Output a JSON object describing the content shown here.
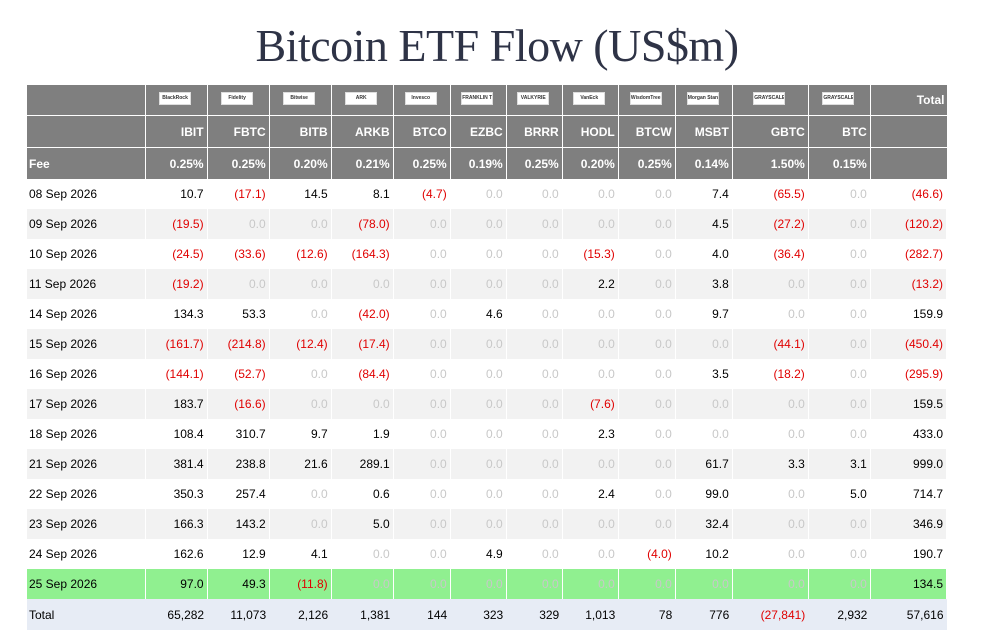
{
  "title": "Bitcoin ETF Flow (US$m)",
  "header": {
    "total_label": "Total",
    "fee_label": "Fee",
    "funds": [
      {
        "logo": "BlackRock",
        "ticker": "IBIT",
        "fee": "0.25%"
      },
      {
        "logo": "Fidelity",
        "ticker": "FBTC",
        "fee": "0.25%"
      },
      {
        "logo": "Bitwise",
        "ticker": "BITB",
        "fee": "0.20%"
      },
      {
        "logo": "ARK",
        "ticker": "ARKB",
        "fee": "0.21%"
      },
      {
        "logo": "Invesco",
        "ticker": "BTCO",
        "fee": "0.25%"
      },
      {
        "logo": "FRANKLIN TEMPLETON",
        "ticker": "EZBC",
        "fee": "0.19%"
      },
      {
        "logo": "VALKYRIE",
        "ticker": "BRRR",
        "fee": "0.25%"
      },
      {
        "logo": "VanEck",
        "ticker": "HODL",
        "fee": "0.20%"
      },
      {
        "logo": "WisdomTree",
        "ticker": "BTCW",
        "fee": "0.25%"
      },
      {
        "logo": "Morgan Stanley",
        "ticker": "MSBT",
        "fee": "0.14%"
      },
      {
        "logo": "GRAYSCALE",
        "ticker": "GBTC",
        "fee": "1.50%"
      },
      {
        "logo": "GRAYSCALE",
        "ticker": "BTC",
        "fee": "0.15%"
      }
    ]
  },
  "rows": [
    {
      "date": "08 Sep 2026",
      "values": [
        "10.7",
        "(17.1)",
        "14.5",
        "8.1",
        "(4.7)",
        "0.0",
        "0.0",
        "0.0",
        "0.0",
        "7.4",
        "(65.5)",
        "0.0",
        "(46.6)"
      ]
    },
    {
      "date": "09 Sep 2026",
      "values": [
        "(19.5)",
        "0.0",
        "0.0",
        "(78.0)",
        "0.0",
        "0.0",
        "0.0",
        "0.0",
        "0.0",
        "4.5",
        "(27.2)",
        "0.0",
        "(120.2)"
      ]
    },
    {
      "date": "10 Sep 2026",
      "values": [
        "(24.5)",
        "(33.6)",
        "(12.6)",
        "(164.3)",
        "0.0",
        "0.0",
        "0.0",
        "(15.3)",
        "0.0",
        "4.0",
        "(36.4)",
        "0.0",
        "(282.7)"
      ]
    },
    {
      "date": "11 Sep 2026",
      "values": [
        "(19.2)",
        "0.0",
        "0.0",
        "0.0",
        "0.0",
        "0.0",
        "0.0",
        "2.2",
        "0.0",
        "3.8",
        "0.0",
        "0.0",
        "(13.2)"
      ]
    },
    {
      "date": "14 Sep 2026",
      "values": [
        "134.3",
        "53.3",
        "0.0",
        "(42.0)",
        "0.0",
        "4.6",
        "0.0",
        "0.0",
        "0.0",
        "9.7",
        "0.0",
        "0.0",
        "159.9"
      ]
    },
    {
      "date": "15 Sep 2026",
      "values": [
        "(161.7)",
        "(214.8)",
        "(12.4)",
        "(17.4)",
        "0.0",
        "0.0",
        "0.0",
        "0.0",
        "0.0",
        "0.0",
        "(44.1)",
        "0.0",
        "(450.4)"
      ]
    },
    {
      "date": "16 Sep 2026",
      "values": [
        "(144.1)",
        "(52.7)",
        "0.0",
        "(84.4)",
        "0.0",
        "0.0",
        "0.0",
        "0.0",
        "0.0",
        "3.5",
        "(18.2)",
        "0.0",
        "(295.9)"
      ]
    },
    {
      "date": "17 Sep 2026",
      "values": [
        "183.7",
        "(16.6)",
        "0.0",
        "0.0",
        "0.0",
        "0.0",
        "0.0",
        "(7.6)",
        "0.0",
        "0.0",
        "0.0",
        "0.0",
        "159.5"
      ]
    },
    {
      "date": "18 Sep 2026",
      "values": [
        "108.4",
        "310.7",
        "9.7",
        "1.9",
        "0.0",
        "0.0",
        "0.0",
        "2.3",
        "0.0",
        "0.0",
        "0.0",
        "0.0",
        "433.0"
      ]
    },
    {
      "date": "21 Sep 2026",
      "values": [
        "381.4",
        "238.8",
        "21.6",
        "289.1",
        "0.0",
        "0.0",
        "0.0",
        "0.0",
        "0.0",
        "61.7",
        "3.3",
        "3.1",
        "999.0"
      ]
    },
    {
      "date": "22 Sep 2026",
      "values": [
        "350.3",
        "257.4",
        "0.0",
        "0.6",
        "0.0",
        "0.0",
        "0.0",
        "2.4",
        "0.0",
        "99.0",
        "0.0",
        "5.0",
        "714.7"
      ]
    },
    {
      "date": "23 Sep 2026",
      "values": [
        "166.3",
        "143.2",
        "0.0",
        "5.0",
        "0.0",
        "0.0",
        "0.0",
        "0.0",
        "0.0",
        "32.4",
        "0.0",
        "0.0",
        "346.9"
      ]
    },
    {
      "date": "24 Sep 2026",
      "values": [
        "162.6",
        "12.9",
        "4.1",
        "0.0",
        "0.0",
        "4.9",
        "0.0",
        "0.0",
        "(4.0)",
        "10.2",
        "0.0",
        "0.0",
        "190.7"
      ]
    },
    {
      "date": "25 Sep 2026",
      "values": [
        "97.0",
        "49.3",
        "(11.8)",
        "0.0",
        "0.0",
        "0.0",
        "0.0",
        "0.0",
        "0.0",
        "0.0",
        "0.0",
        "0.0",
        "134.5"
      ],
      "highlight": true
    }
  ],
  "total": {
    "label": "Total",
    "values": [
      "65,282",
      "11,073",
      "2,126",
      "1,381",
      "144",
      "323",
      "329",
      "1,013",
      "78",
      "776",
      "(27,841)",
      "2,932",
      "57,616"
    ]
  },
  "colors": {
    "header_bg": "#7f7f7f",
    "negative": "#e00000",
    "zero": "#c8c8c8",
    "highlight": "#90f090",
    "total_bg": "#e7ecf5"
  }
}
